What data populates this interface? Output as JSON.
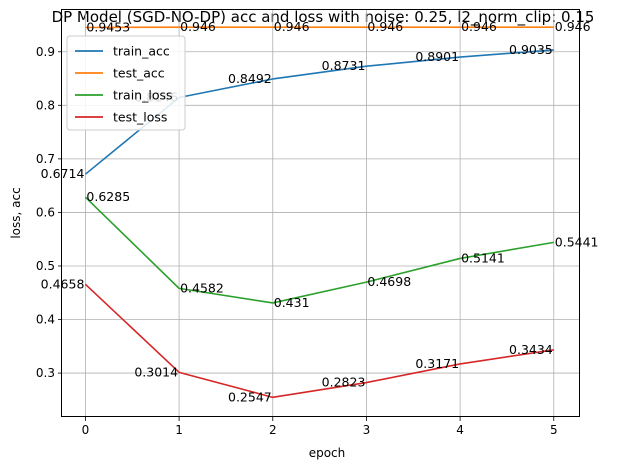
{
  "chart_data": {
    "type": "line",
    "title": "DP Model (SGD-NO-DP) acc and loss with noise: 0.25, l2_norm_clip: 0.15",
    "xlabel": "epoch",
    "ylabel": "loss, acc",
    "x": [
      0,
      1,
      2,
      3,
      4,
      5
    ],
    "xlim": [
      -0.25,
      5.28
    ],
    "ylim": [
      0.218,
      0.978
    ],
    "xticks": [
      "0",
      "1",
      "2",
      "3",
      "4",
      "5"
    ],
    "yticks": [
      "0.3",
      "0.4",
      "0.5",
      "0.6",
      "0.7",
      "0.8",
      "0.9"
    ],
    "grid": true,
    "legend_position": "top-left",
    "series": [
      {
        "name": "train_acc",
        "color": "#1f77b4",
        "values": [
          0.6714,
          0.8146,
          0.8492,
          0.8731,
          0.8901,
          0.9035
        ],
        "labels": [
          "0.6714",
          "0.8146",
          "0.8492",
          "0.8731",
          "0.8901",
          "0.9035"
        ]
      },
      {
        "name": "test_acc",
        "color": "#ff7f0e",
        "values": [
          0.9453,
          0.946,
          0.946,
          0.946,
          0.946,
          0.946
        ],
        "labels": [
          "0.9453",
          "0.946",
          "0.946",
          "0.946",
          "0.946",
          "0.946"
        ]
      },
      {
        "name": "train_loss",
        "color": "#2ca02c",
        "values": [
          0.6285,
          0.4582,
          0.431,
          0.4698,
          0.5141,
          0.5441
        ],
        "labels": [
          "0.6285",
          "0.4582",
          "0.431",
          "0.4698",
          "0.5141",
          "0.5441"
        ]
      },
      {
        "name": "test_loss",
        "color": "#d62728",
        "values": [
          0.4658,
          0.3014,
          0.2547,
          0.2823,
          0.3171,
          0.3434
        ],
        "labels": [
          "0.4658",
          "0.3014",
          "0.2547",
          "0.2823",
          "0.3171",
          "0.3434"
        ]
      }
    ]
  }
}
